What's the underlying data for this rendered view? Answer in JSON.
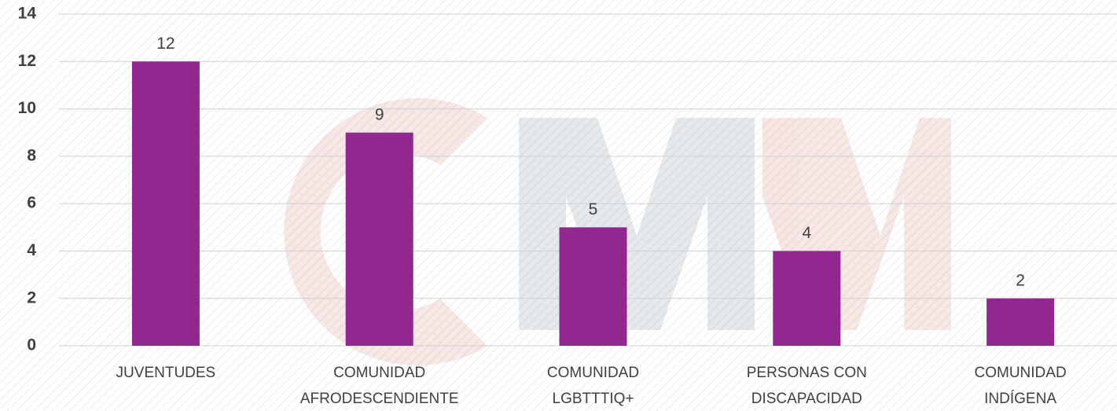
{
  "chart_data": {
    "type": "bar",
    "categories": [
      [
        "JUVENTUDES"
      ],
      [
        "COMUNIDAD",
        "AFRODESCENDIENTE"
      ],
      [
        "COMUNIDAD",
        "LGBTTTIQ+"
      ],
      [
        "PERSONAS CON",
        "DISCAPACIDAD"
      ],
      [
        "COMUNIDAD",
        "INDÍGENA"
      ]
    ],
    "values": [
      12,
      9,
      5,
      4,
      2
    ],
    "color": "#92278f",
    "ylim": [
      0,
      14
    ],
    "yticks": [
      0,
      2,
      4,
      6,
      8,
      10,
      12,
      14
    ],
    "grid": true
  }
}
